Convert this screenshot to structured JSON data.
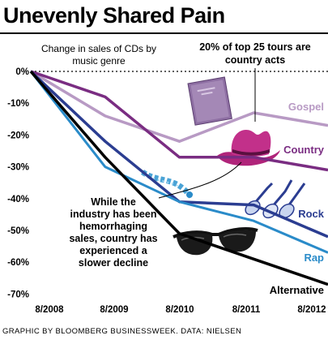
{
  "headline": "Unevenly Shared Pain",
  "credit": "GRAPHIC BY BLOOMBERG BUSINESSWEEK. DATA: NIELSEN",
  "chart_data": {
    "type": "line",
    "title": "Unevenly Shared Pain",
    "subtitle": [
      "Change in sales of CDs by",
      "music genre"
    ],
    "x": [
      "8/2008",
      "8/2009",
      "8/2010",
      "8/2011",
      "8/2012"
    ],
    "yticks": [
      "0%",
      "-10%",
      "-20%",
      "-30%",
      "-40%",
      "-50%",
      "-60%",
      "-70%"
    ],
    "ylim": [
      -72,
      0
    ],
    "baseline_dotted": true,
    "series": [
      {
        "name": "Gospel",
        "color": "#b89ac4",
        "values": [
          0,
          -14,
          -22,
          -13,
          -17
        ]
      },
      {
        "name": "Country",
        "color": "#7a2d82",
        "values": [
          0,
          -8,
          -27,
          -27,
          -31
        ]
      },
      {
        "name": "Rock",
        "color": "#2b3d91",
        "values": [
          0,
          -22,
          -41,
          -42,
          -52
        ]
      },
      {
        "name": "Rap",
        "color": "#2a8bc9",
        "values": [
          0,
          -30,
          -41,
          -47,
          -57
        ]
      },
      {
        "name": "Alternative",
        "color": "#000000",
        "values": [
          0,
          -27,
          -51,
          -59,
          -67
        ]
      }
    ],
    "annotations": [
      {
        "id": "country-tours",
        "lines": [
          "20% of top 25 tours are",
          "country acts"
        ]
      },
      {
        "id": "decline-note",
        "lines": [
          "While the",
          "industry has been",
          "hemorrhaging",
          "sales, country has",
          "experienced a",
          "slower decline"
        ]
      }
    ]
  },
  "icons": [
    "bible-icon",
    "cowboy-hat-icon",
    "bling-chain-icon",
    "electric-guitars-icon",
    "sunglasses-icon"
  ]
}
